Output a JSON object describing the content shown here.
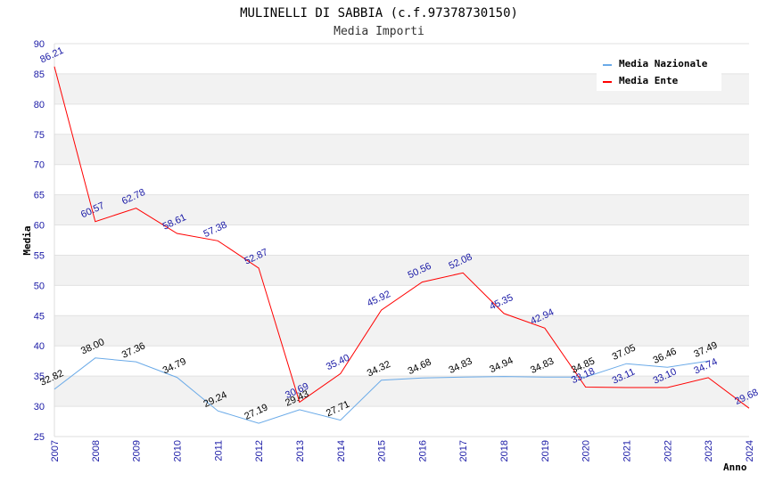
{
  "chart_data": {
    "type": "line",
    "title": "MULINELLI DI SABBIA (c.f.97378730150)",
    "subtitle": "Media Importi",
    "xlabel": "Anno",
    "ylabel": "Media",
    "ylim": [
      25,
      90
    ],
    "yticks": [
      25,
      30,
      35,
      40,
      45,
      50,
      55,
      60,
      65,
      70,
      75,
      80,
      85,
      90
    ],
    "categories": [
      "2007",
      "2008",
      "2009",
      "2010",
      "2011",
      "2012",
      "2013",
      "2014",
      "2015",
      "2016",
      "2017",
      "2018",
      "2019",
      "2020",
      "2021",
      "2022",
      "2023",
      "2024"
    ],
    "grid": true,
    "legend_position": "top-right",
    "series": [
      {
        "name": "Media Nazionale",
        "color": "#6aaae8",
        "values": [
          32.82,
          38.0,
          37.36,
          34.79,
          29.24,
          27.19,
          29.43,
          27.71,
          34.32,
          34.68,
          34.83,
          34.94,
          34.83,
          34.85,
          37.05,
          36.46,
          37.49,
          null
        ],
        "labels": [
          "32.82",
          "38.00",
          "37.36",
          "34.79",
          "29.24",
          "27.19",
          "29.43",
          "27.71",
          "34.32",
          "34.68",
          "34.83",
          "34.94",
          "34.83",
          "34.85",
          "37.05",
          "36.46",
          "37.49",
          null
        ]
      },
      {
        "name": "Media Ente",
        "color": "#ff0000",
        "values": [
          86.21,
          60.57,
          62.78,
          58.61,
          57.38,
          52.87,
          30.69,
          35.4,
          45.92,
          50.56,
          52.08,
          45.35,
          42.94,
          33.18,
          33.11,
          33.1,
          34.74,
          29.68
        ],
        "labels": [
          "86.21",
          "60.57",
          "62.78",
          "58.61",
          "57.38",
          "52.87",
          "30.69",
          "35.40",
          "45.92",
          "50.56",
          "52.08",
          "45.35",
          "42.94",
          "33.18",
          "33.11",
          "33.10",
          "34.74",
          "29.68"
        ]
      }
    ]
  }
}
